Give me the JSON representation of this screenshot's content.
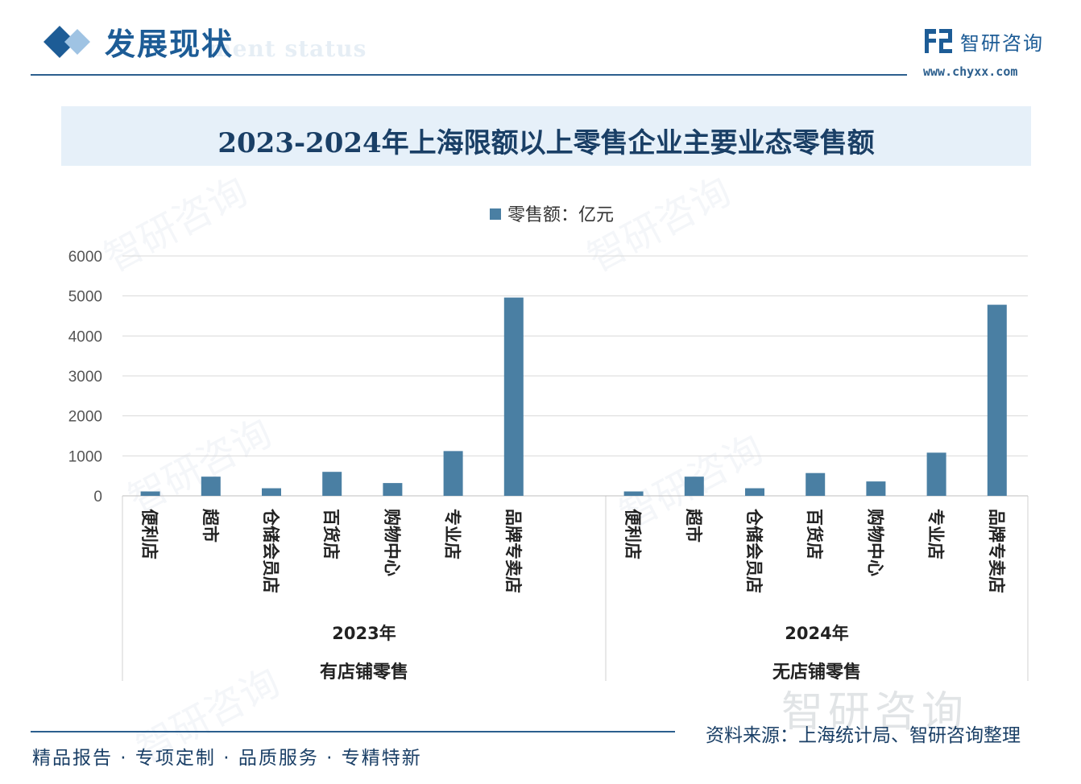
{
  "header": {
    "section_title": "发展现状",
    "section_subtitle": "ment status",
    "brand_name": "智研咨询",
    "brand_url": "www.chyxx.com",
    "accent_color": "#1d5c96"
  },
  "footer": {
    "slogan": "精品报告 · 专项定制 · 品质服务 · 专精特新",
    "source": "资料来源：上海统计局、智研咨询整理"
  },
  "watermark": {
    "text": "智研咨询"
  },
  "chart_data": {
    "type": "bar",
    "title": "2023-2024年上海限额以上零售企业主要业态零售额",
    "legend_position": "top-center",
    "grid": true,
    "bar_color": "#4a7fa3",
    "ylim": [
      0,
      6000
    ],
    "yticks": [
      0,
      1000,
      2000,
      3000,
      4000,
      5000,
      6000
    ],
    "categories": [
      "便利店",
      "超市",
      "仓储会员店",
      "百货店",
      "购物中心",
      "专业店",
      "品牌专卖店"
    ],
    "groups": [
      {
        "year": "2023年",
        "group_label": "有店铺零售",
        "values": [
          110,
          480,
          190,
          600,
          320,
          1120,
          4960
        ]
      },
      {
        "year": "2024年",
        "group_label": "无店铺零售",
        "values": [
          110,
          480,
          190,
          570,
          360,
          1080,
          4780
        ]
      }
    ],
    "series": [
      {
        "name": "零售额：亿元"
      }
    ]
  }
}
